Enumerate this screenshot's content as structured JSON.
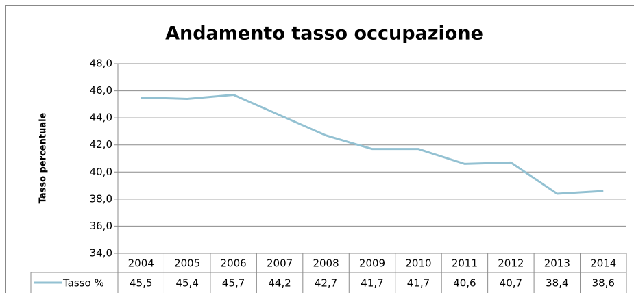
{
  "chart_data": {
    "type": "line",
    "title": "Andamento tasso occupazione",
    "ylabel": "Tasso percentuale",
    "categories": [
      "2004",
      "2005",
      "2006",
      "2007",
      "2008",
      "2009",
      "2010",
      "2011",
      "2012",
      "2013",
      "2014"
    ],
    "series": [
      {
        "name": "Tasso %",
        "color": "#93c1d2",
        "values": [
          45.5,
          45.4,
          45.7,
          44.2,
          42.7,
          41.7,
          41.7,
          40.6,
          40.7,
          38.4,
          38.6
        ],
        "value_labels": [
          "45,5",
          "45,4",
          "45,7",
          "44,2",
          "42,7",
          "41,7",
          "41,7",
          "40,6",
          "40,7",
          "38,4",
          "38,6"
        ]
      }
    ],
    "ylim": [
      34,
      48
    ],
    "yticks": [
      {
        "value": 34,
        "label": "34,0"
      },
      {
        "value": 36,
        "label": "36,0"
      },
      {
        "value": 38,
        "label": "38,0"
      },
      {
        "value": 40,
        "label": "40,0"
      },
      {
        "value": 42,
        "label": "42,0"
      },
      {
        "value": 44,
        "label": "44,0"
      },
      {
        "value": 46,
        "label": "46,0"
      },
      {
        "value": 48,
        "label": "48,0"
      }
    ],
    "grid": true
  }
}
